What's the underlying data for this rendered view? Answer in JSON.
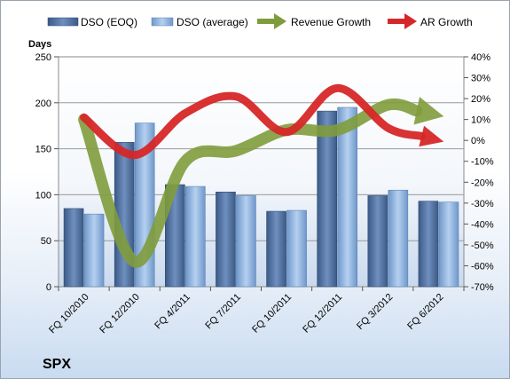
{
  "chart_data": {
    "type": "bar",
    "title": "",
    "company_label": "SPX",
    "ylabel_left": "Days",
    "ylabel_right": "",
    "ylim_left": [
      0,
      250
    ],
    "yticks_left": [
      0,
      50,
      100,
      150,
      200,
      250
    ],
    "ylim_right": [
      -70,
      40
    ],
    "yticks_right": [
      "40%",
      "30%",
      "20%",
      "10%",
      "0%",
      "-10%",
      "-20%",
      "-30%",
      "-40%",
      "-50%",
      "-60%",
      "-70%"
    ],
    "yticks_right_values": [
      40,
      30,
      20,
      10,
      0,
      -10,
      -20,
      -30,
      -40,
      -50,
      -60,
      -70
    ],
    "categories": [
      "FQ 10/2010",
      "FQ 12/2010",
      "FQ 4/2011",
      "FQ 7/2011",
      "FQ 10/2011",
      "FQ 12/2011",
      "FQ 3/2012",
      "FQ 6/2012"
    ],
    "legend_position": "top",
    "grid": true,
    "series": [
      {
        "name": "DSO (EOQ)",
        "kind": "bar",
        "axis": "left",
        "color": "#4f6f9c",
        "values": [
          85,
          157,
          111,
          103,
          82,
          191,
          99,
          93
        ]
      },
      {
        "name": "DSO (average)",
        "kind": "bar",
        "axis": "left",
        "color": "#8fb3e0",
        "values": [
          79,
          178,
          109,
          99,
          83,
          195,
          105,
          92
        ]
      },
      {
        "name": "Revenue Growth",
        "kind": "arrow-line",
        "axis": "right",
        "color": "#7f9c3c",
        "values": [
          10,
          -58,
          -10,
          -5,
          5,
          5,
          17,
          12
        ]
      },
      {
        "name": "AR Growth",
        "kind": "arrow-line",
        "axis": "right",
        "color": "#d62728",
        "values": [
          11,
          -7,
          13,
          21,
          4,
          25,
          6,
          0
        ]
      }
    ]
  }
}
